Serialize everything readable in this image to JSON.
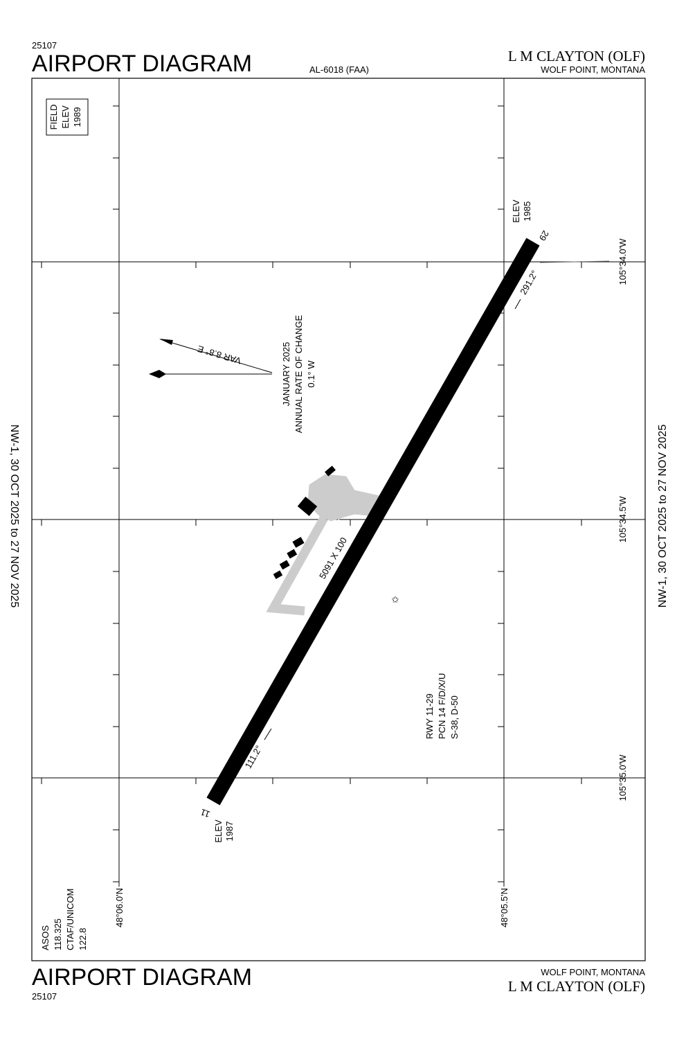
{
  "header": {
    "chart_number": "25107",
    "title": "AIRPORT DIAGRAM",
    "procedure_id": "AL-6018 (FAA)",
    "airport_name": "L M CLAYTON (OLF)",
    "location": "WOLF POINT, MONTANA"
  },
  "footer": {
    "chart_number": "25107",
    "title": "AIRPORT DIAGRAM",
    "airport_name": "L M CLAYTON (OLF)",
    "location": "WOLF POINT, MONTANA"
  },
  "effective_left": "NW-1, 30 OCT 2025 to 27 NOV 2025",
  "effective_right": "NW-1, 30 OCT 2025 to 27 NOV 2025",
  "field_elevation": [
    "FIELD",
    "ELEV",
    "1989"
  ],
  "longitudes": [
    "105°34.0'W",
    "105°34.5'W",
    "105°35.0'W"
  ],
  "latitudes": [
    "48°06.0'N",
    "48°05.5'N"
  ],
  "runway": {
    "end_29": "29",
    "end_11": "11",
    "elev_29": [
      "ELEV",
      "1985"
    ],
    "elev_11": [
      "ELEV",
      "1987"
    ],
    "heading_29": "291.2°",
    "heading_11": "111.2°",
    "dimensions": "5091 X 100",
    "info": [
      "RWY 11-29",
      "PCN 14 F/D/X/U",
      "S-38, D-50"
    ]
  },
  "variation": {
    "label": "VAR 8.8° E",
    "note": [
      "JANUARY 2025",
      "ANNUAL RATE OF CHANGE",
      "0.1° W"
    ]
  },
  "comms": [
    "ASOS",
    "118.325",
    "CTAF/UNICOM",
    "122.8"
  ]
}
